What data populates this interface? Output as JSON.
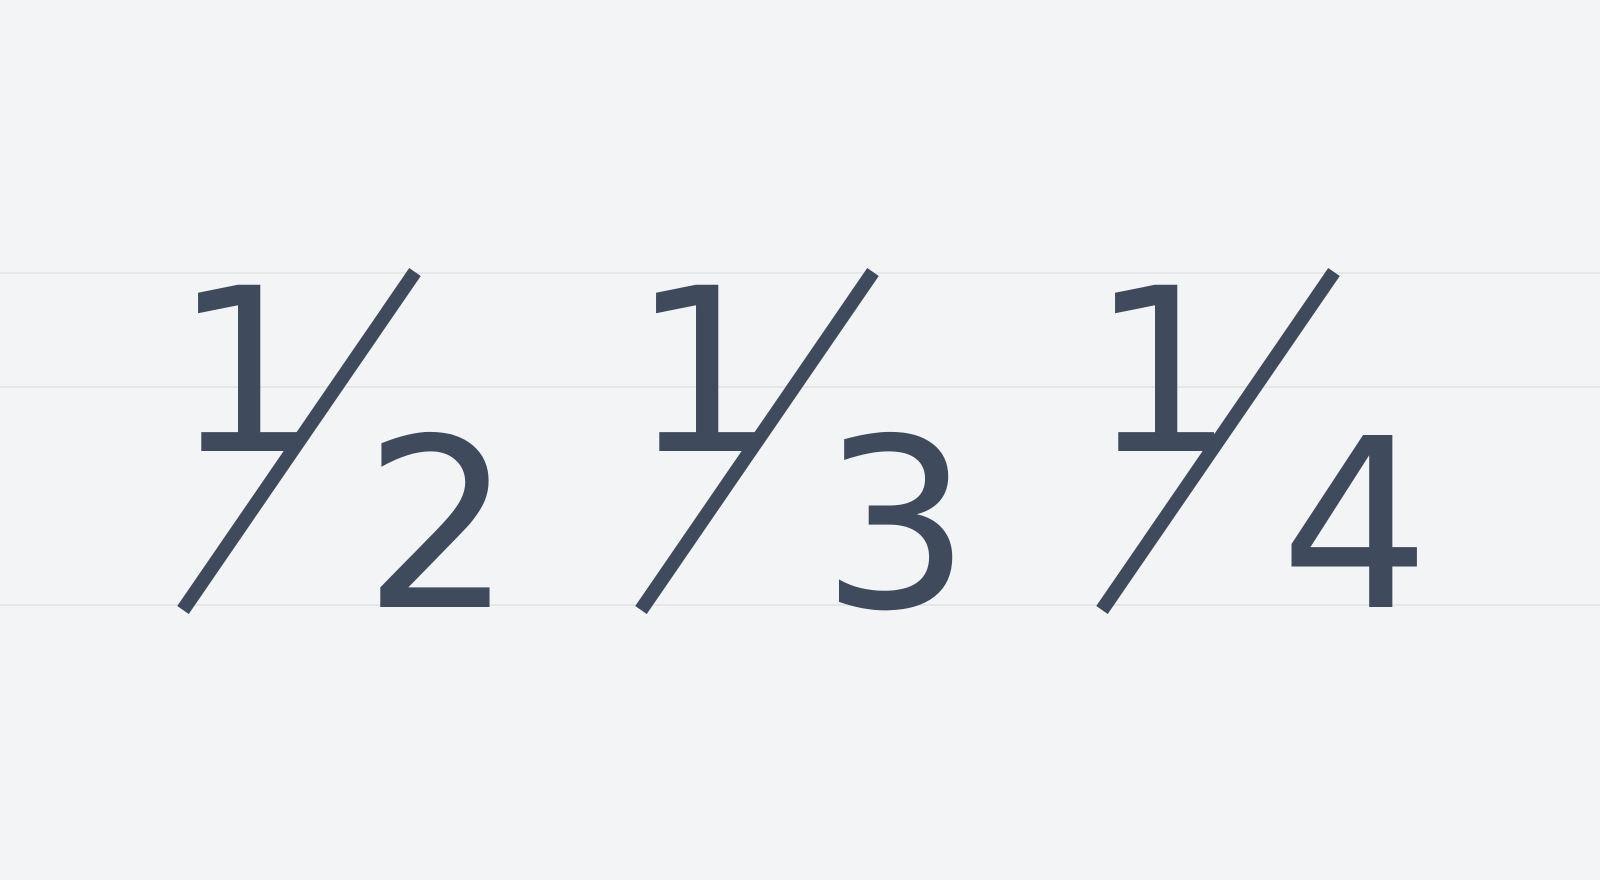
{
  "fractions": [
    {
      "numerator": "1",
      "denominator": "2"
    },
    {
      "numerator": "1",
      "denominator": "3"
    },
    {
      "numerator": "1",
      "denominator": "4"
    }
  ],
  "colors": {
    "background": "#f3f4f6",
    "glyph": "#3f4a5c",
    "guide_lines": "#e4e6ea"
  }
}
